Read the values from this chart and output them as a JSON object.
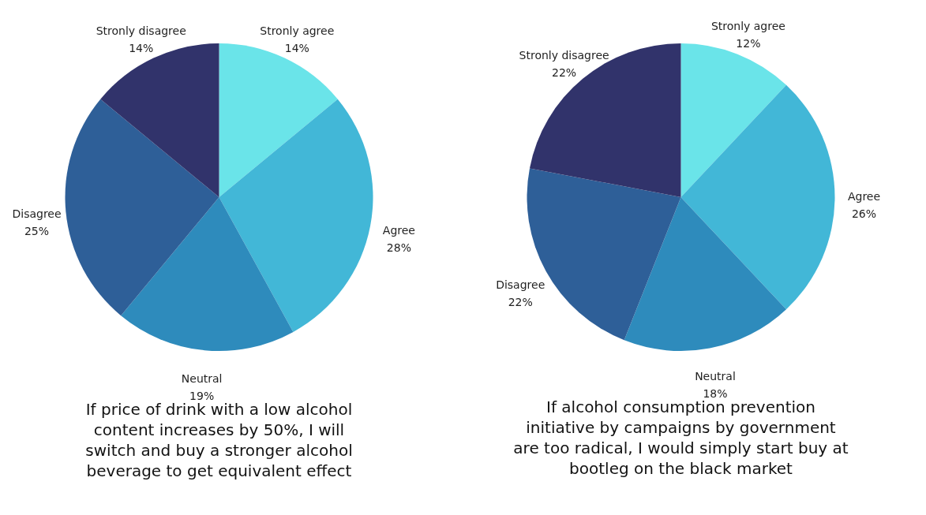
{
  "chart_data": [
    {
      "type": "pie",
      "title": [
        "If price of drink with a low alcohol",
        "content increases by 50%, I will",
        "switch and buy a stronger alcohol",
        "beverage to get equivalent effect"
      ],
      "categories": [
        "Stronly agree",
        "Agree",
        "Neutral",
        "Disagree",
        "Stronly disagree"
      ],
      "values": [
        14,
        28,
        19,
        25,
        14
      ],
      "value_labels": [
        "14%",
        "28%",
        "19%",
        "25%",
        "14%"
      ],
      "colors": [
        "#6ae4e9",
        "#42b7d7",
        "#2e8bbc",
        "#2e5f98",
        "#31336b"
      ],
      "legend": false
    },
    {
      "type": "pie",
      "title": [
        "If alcohol consumption prevention",
        "initiative by campaigns by government",
        "are too radical, I would simply start buy at",
        "bootleg on the black market"
      ],
      "categories": [
        "Stronly agree",
        "Agree",
        "Neutral",
        "Disagree",
        "Stronly disagree"
      ],
      "values": [
        12,
        26,
        18,
        22,
        22
      ],
      "value_labels": [
        "12%",
        "26%",
        "18%",
        "22%",
        "22%"
      ],
      "colors": [
        "#6ae4e9",
        "#42b7d7",
        "#2e8bbc",
        "#2e5f98",
        "#31336b"
      ],
      "legend": false
    }
  ]
}
